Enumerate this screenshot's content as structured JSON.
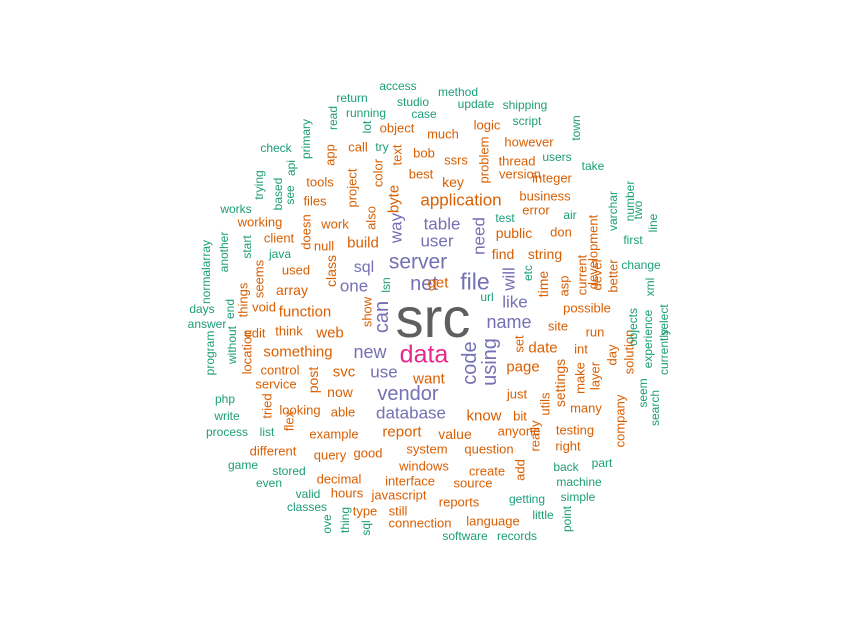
{
  "palette": {
    "gray": "#5f5f5f",
    "pink": "#e7298a",
    "purple": "#7570b3",
    "orange": "#d95f02",
    "teal": "#1b9e77"
  },
  "words": [
    {
      "text": "src",
      "c": "gray"
    },
    {
      "text": "data",
      "c": "pink"
    },
    {
      "text": "file",
      "c": "purple"
    },
    {
      "text": "server",
      "c": "purple"
    },
    {
      "text": "net",
      "c": "purple"
    },
    {
      "text": "vendor",
      "c": "purple"
    },
    {
      "text": "name",
      "c": "purple"
    },
    {
      "text": "new",
      "c": "purple"
    },
    {
      "text": "code",
      "c": "purple"
    },
    {
      "text": "can",
      "c": "purple"
    },
    {
      "text": "using",
      "c": "purple"
    },
    {
      "text": "database",
      "c": "purple"
    },
    {
      "text": "application",
      "c": "orange"
    },
    {
      "text": "table",
      "c": "purple"
    },
    {
      "text": "user",
      "c": "purple"
    },
    {
      "text": "like",
      "c": "purple"
    },
    {
      "text": "way",
      "c": "purple"
    },
    {
      "text": "need",
      "c": "purple"
    },
    {
      "text": "one",
      "c": "purple"
    },
    {
      "text": "use",
      "c": "purple"
    },
    {
      "text": "will",
      "c": "purple"
    },
    {
      "text": "sql",
      "c": "purple"
    },
    {
      "text": "function",
      "c": "orange"
    },
    {
      "text": "get",
      "c": "orange"
    },
    {
      "text": "build",
      "c": "orange"
    },
    {
      "text": "web",
      "c": "orange"
    },
    {
      "text": "know",
      "c": "orange"
    },
    {
      "text": "page",
      "c": "orange"
    },
    {
      "text": "want",
      "c": "orange"
    },
    {
      "text": "date",
      "c": "orange"
    },
    {
      "text": "report",
      "c": "orange"
    },
    {
      "text": "something",
      "c": "orange"
    },
    {
      "text": "svc",
      "c": "orange"
    },
    {
      "text": "byte",
      "c": "orange"
    },
    {
      "text": "time",
      "c": "orange"
    },
    {
      "text": "string",
      "c": "orange"
    },
    {
      "text": "key",
      "c": "orange"
    },
    {
      "text": "public",
      "c": "orange"
    },
    {
      "text": "class",
      "c": "orange"
    },
    {
      "text": "find",
      "c": "orange"
    },
    {
      "text": "array",
      "c": "orange"
    },
    {
      "text": "value",
      "c": "orange"
    },
    {
      "text": "now",
      "c": "orange"
    },
    {
      "text": "post",
      "c": "orange"
    },
    {
      "text": "settings",
      "c": "orange"
    },
    {
      "text": "question",
      "c": "orange"
    },
    {
      "text": "system",
      "c": "orange"
    },
    {
      "text": "anyone",
      "c": "orange"
    },
    {
      "text": "just",
      "c": "orange"
    },
    {
      "text": "example",
      "c": "orange"
    },
    {
      "text": "work",
      "c": "orange"
    },
    {
      "text": "also",
      "c": "orange"
    },
    {
      "text": "possible",
      "c": "orange"
    },
    {
      "text": "used",
      "c": "orange"
    },
    {
      "text": "null",
      "c": "orange"
    },
    {
      "text": "utils",
      "c": "orange"
    },
    {
      "text": "able",
      "c": "orange"
    },
    {
      "text": "site",
      "c": "orange"
    },
    {
      "text": "think",
      "c": "orange"
    },
    {
      "text": "business",
      "c": "orange"
    },
    {
      "text": "version",
      "c": "orange"
    },
    {
      "text": "thread",
      "c": "orange"
    },
    {
      "text": "integer",
      "c": "orange"
    },
    {
      "text": "problem",
      "c": "orange"
    },
    {
      "text": "error",
      "c": "orange"
    },
    {
      "text": "don",
      "c": "orange"
    },
    {
      "text": "much",
      "c": "orange"
    },
    {
      "text": "best",
      "c": "orange"
    },
    {
      "text": "ssrs",
      "c": "orange"
    },
    {
      "text": "bob",
      "c": "orange"
    },
    {
      "text": "logic",
      "c": "orange"
    },
    {
      "text": "however",
      "c": "orange"
    },
    {
      "text": "object",
      "c": "orange"
    },
    {
      "text": "call",
      "c": "orange"
    },
    {
      "text": "text",
      "c": "orange"
    },
    {
      "text": "color",
      "c": "orange"
    },
    {
      "text": "tools",
      "c": "orange"
    },
    {
      "text": "files",
      "c": "orange"
    },
    {
      "text": "project",
      "c": "orange"
    },
    {
      "text": "app",
      "c": "orange"
    },
    {
      "text": "working",
      "c": "orange"
    },
    {
      "text": "client",
      "c": "orange"
    },
    {
      "text": "doesn",
      "c": "orange"
    },
    {
      "text": "looking",
      "c": "orange"
    },
    {
      "text": "control",
      "c": "orange"
    },
    {
      "text": "service",
      "c": "orange"
    },
    {
      "text": "edit",
      "c": "orange"
    },
    {
      "text": "void",
      "c": "orange"
    },
    {
      "text": "good",
      "c": "orange"
    },
    {
      "text": "query",
      "c": "orange"
    },
    {
      "text": "different",
      "c": "orange"
    },
    {
      "text": "windows",
      "c": "orange"
    },
    {
      "text": "interface",
      "c": "orange"
    },
    {
      "text": "create",
      "c": "orange"
    },
    {
      "text": "source",
      "c": "orange"
    },
    {
      "text": "reports",
      "c": "orange"
    },
    {
      "text": "decimal",
      "c": "orange"
    },
    {
      "text": "hours",
      "c": "orange"
    },
    {
      "text": "javascript",
      "c": "orange"
    },
    {
      "text": "connection",
      "c": "orange"
    },
    {
      "text": "language",
      "c": "orange"
    },
    {
      "text": "type",
      "c": "orange"
    },
    {
      "text": "still",
      "c": "orange"
    },
    {
      "text": "run",
      "c": "orange"
    },
    {
      "text": "int",
      "c": "orange"
    },
    {
      "text": "make",
      "c": "orange"
    },
    {
      "text": "layer",
      "c": "orange"
    },
    {
      "text": "many",
      "c": "orange"
    },
    {
      "text": "bit",
      "c": "orange"
    },
    {
      "text": "testing",
      "c": "orange"
    },
    {
      "text": "right",
      "c": "orange"
    },
    {
      "text": "company",
      "c": "orange"
    },
    {
      "text": "day",
      "c": "orange"
    },
    {
      "text": "solution",
      "c": "orange"
    },
    {
      "text": "current",
      "c": "orange"
    },
    {
      "text": "development",
      "c": "orange"
    },
    {
      "text": "better",
      "c": "orange"
    },
    {
      "text": "devel",
      "c": "orange"
    },
    {
      "text": "flex",
      "c": "orange"
    },
    {
      "text": "tried",
      "c": "orange"
    },
    {
      "text": "location",
      "c": "orange"
    },
    {
      "text": "show",
      "c": "orange"
    },
    {
      "text": "seems",
      "c": "orange"
    },
    {
      "text": "things",
      "c": "orange"
    },
    {
      "text": "really",
      "c": "orange"
    },
    {
      "text": "add",
      "c": "orange"
    },
    {
      "text": "set",
      "c": "orange"
    },
    {
      "text": "asp",
      "c": "orange"
    },
    {
      "text": "access",
      "c": "teal"
    },
    {
      "text": "method",
      "c": "teal"
    },
    {
      "text": "return",
      "c": "teal"
    },
    {
      "text": "studio",
      "c": "teal"
    },
    {
      "text": "update",
      "c": "teal"
    },
    {
      "text": "shipping",
      "c": "teal"
    },
    {
      "text": "read",
      "c": "teal"
    },
    {
      "text": "running",
      "c": "teal"
    },
    {
      "text": "case",
      "c": "teal"
    },
    {
      "text": "script",
      "c": "teal"
    },
    {
      "text": "lot",
      "c": "teal"
    },
    {
      "text": "town",
      "c": "teal"
    },
    {
      "text": "primary",
      "c": "teal"
    },
    {
      "text": "check",
      "c": "teal"
    },
    {
      "text": "try",
      "c": "teal"
    },
    {
      "text": "users",
      "c": "teal"
    },
    {
      "text": "take",
      "c": "teal"
    },
    {
      "text": "api",
      "c": "teal"
    },
    {
      "text": "based",
      "c": "teal"
    },
    {
      "text": "see",
      "c": "teal"
    },
    {
      "text": "trying",
      "c": "teal"
    },
    {
      "text": "works",
      "c": "teal"
    },
    {
      "text": "another",
      "c": "teal"
    },
    {
      "text": "start",
      "c": "teal"
    },
    {
      "text": "java",
      "c": "teal"
    },
    {
      "text": "normalarray",
      "c": "teal"
    },
    {
      "text": "test",
      "c": "teal"
    },
    {
      "text": "air",
      "c": "teal"
    },
    {
      "text": "number",
      "c": "teal"
    },
    {
      "text": "varchar",
      "c": "teal"
    },
    {
      "text": "two",
      "c": "teal"
    },
    {
      "text": "line",
      "c": "teal"
    },
    {
      "text": "first",
      "c": "teal"
    },
    {
      "text": "change",
      "c": "teal"
    },
    {
      "text": "etc",
      "c": "teal"
    },
    {
      "text": "url",
      "c": "teal"
    },
    {
      "text": "lsn",
      "c": "teal"
    },
    {
      "text": "xml",
      "c": "teal"
    },
    {
      "text": "days",
      "c": "teal"
    },
    {
      "text": "end",
      "c": "teal"
    },
    {
      "text": "answer",
      "c": "teal"
    },
    {
      "text": "without",
      "c": "teal"
    },
    {
      "text": "objects",
      "c": "teal"
    },
    {
      "text": "select",
      "c": "teal"
    },
    {
      "text": "experience",
      "c": "teal"
    },
    {
      "text": "currently",
      "c": "teal"
    },
    {
      "text": "program",
      "c": "teal"
    },
    {
      "text": "php",
      "c": "teal"
    },
    {
      "text": "write",
      "c": "teal"
    },
    {
      "text": "process",
      "c": "teal"
    },
    {
      "text": "list",
      "c": "teal"
    },
    {
      "text": "seem",
      "c": "teal"
    },
    {
      "text": "search",
      "c": "teal"
    },
    {
      "text": "game",
      "c": "teal"
    },
    {
      "text": "stored",
      "c": "teal"
    },
    {
      "text": "even",
      "c": "teal"
    },
    {
      "text": "valid",
      "c": "teal"
    },
    {
      "text": "classes",
      "c": "teal"
    },
    {
      "text": "back",
      "c": "teal"
    },
    {
      "text": "part",
      "c": "teal"
    },
    {
      "text": "machine",
      "c": "teal"
    },
    {
      "text": "getting",
      "c": "teal"
    },
    {
      "text": "simple",
      "c": "teal"
    },
    {
      "text": "little",
      "c": "teal"
    },
    {
      "text": "point",
      "c": "teal"
    },
    {
      "text": "thing",
      "c": "teal"
    },
    {
      "text": "sql",
      "c": "teal"
    },
    {
      "text": "ove",
      "c": "teal"
    },
    {
      "text": "software",
      "c": "teal"
    },
    {
      "text": "records",
      "c": "teal"
    }
  ]
}
